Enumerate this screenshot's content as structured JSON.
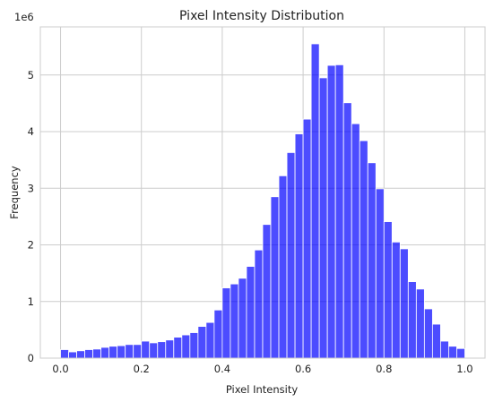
{
  "chart_data": {
    "type": "bar",
    "title": "Pixel Intensity Distribution",
    "xlabel": "Pixel Intensity",
    "ylabel": "Frequency",
    "y_offset_text": "1e6",
    "xlim": [
      -0.05,
      1.05
    ],
    "ylim": [
      0,
      5.85
    ],
    "y_unit_multiplier": 1000000,
    "grid": true,
    "bin_width": 0.02,
    "x_ticks": [
      {
        "value": 0.0,
        "label": "0.0"
      },
      {
        "value": 0.2,
        "label": "0.2"
      },
      {
        "value": 0.4,
        "label": "0.4"
      },
      {
        "value": 0.6,
        "label": "0.6"
      },
      {
        "value": 0.8,
        "label": "0.8"
      },
      {
        "value": 1.0,
        "label": "1.0"
      }
    ],
    "y_ticks": [
      {
        "value": 0,
        "label": "0"
      },
      {
        "value": 1,
        "label": "1"
      },
      {
        "value": 2,
        "label": "2"
      },
      {
        "value": 3,
        "label": "3"
      },
      {
        "value": 4,
        "label": "4"
      },
      {
        "value": 5,
        "label": "5"
      }
    ],
    "bin_starts": [
      0.0,
      0.02,
      0.04,
      0.06,
      0.08,
      0.1,
      0.12,
      0.14,
      0.16,
      0.18,
      0.2,
      0.22,
      0.24,
      0.26,
      0.28,
      0.3,
      0.32,
      0.34,
      0.36,
      0.38,
      0.4,
      0.42,
      0.44,
      0.46,
      0.48,
      0.5,
      0.52,
      0.54,
      0.56,
      0.58,
      0.6,
      0.62,
      0.64,
      0.66,
      0.68,
      0.7,
      0.72,
      0.74,
      0.76,
      0.78,
      0.8,
      0.82,
      0.84,
      0.86,
      0.88,
      0.9,
      0.92,
      0.94,
      0.96,
      0.98
    ],
    "values": [
      0.15,
      0.11,
      0.13,
      0.15,
      0.16,
      0.19,
      0.21,
      0.22,
      0.24,
      0.24,
      0.3,
      0.27,
      0.29,
      0.32,
      0.37,
      0.41,
      0.45,
      0.56,
      0.63,
      0.85,
      1.24,
      1.31,
      1.41,
      1.62,
      1.91,
      2.36,
      2.85,
      3.22,
      3.63,
      3.96,
      4.22,
      5.55,
      4.95,
      5.17,
      5.18,
      4.51,
      4.14,
      3.84,
      3.45,
      2.99,
      2.41,
      2.05,
      1.93,
      1.35,
      1.22,
      0.87,
      0.6,
      0.3,
      0.21,
      0.17
    ]
  }
}
